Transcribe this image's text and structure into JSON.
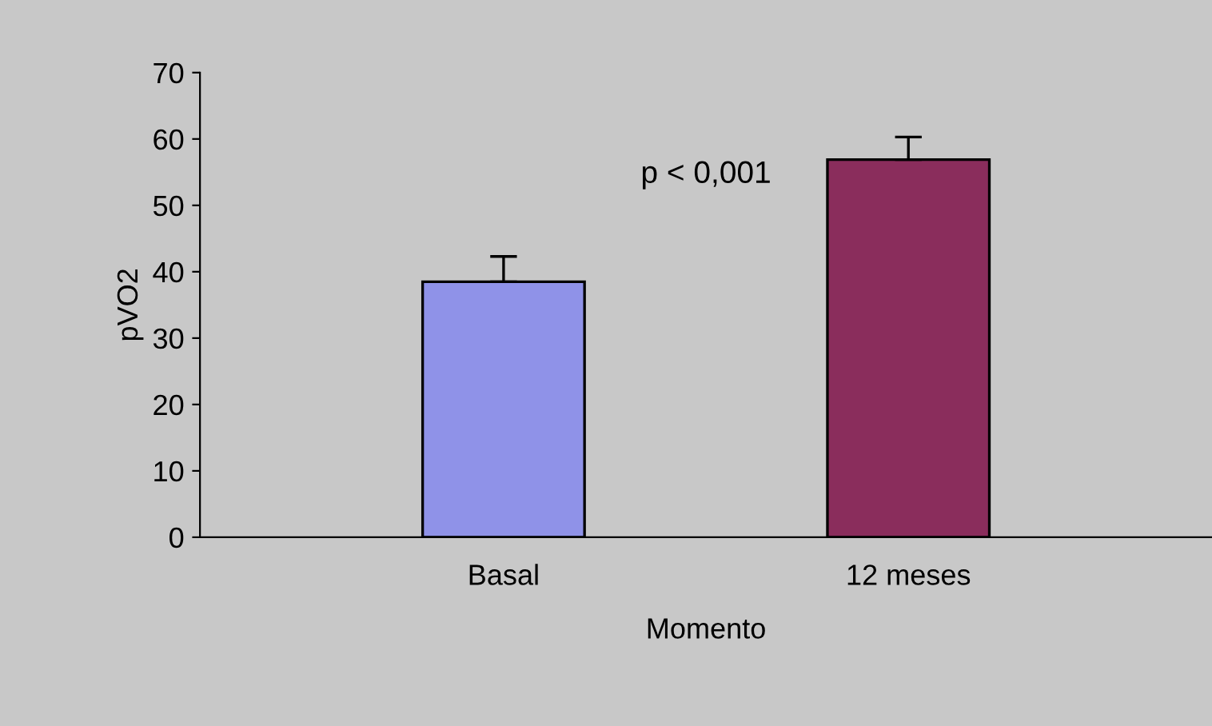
{
  "chart_data": {
    "type": "bar",
    "xlabel": "Momento",
    "ylabel": "pVO2",
    "categories": [
      "Basal",
      "12 meses"
    ],
    "values": [
      38.5,
      56.9
    ],
    "errors": [
      [
        38.5,
        42.3
      ],
      [
        56.9,
        60.3
      ]
    ],
    "colors": [
      "#8f92e8",
      "#8a2d5c"
    ],
    "ylim": [
      0,
      70
    ],
    "yticks": [
      0,
      10,
      20,
      30,
      40,
      50,
      60,
      70
    ],
    "grid": false,
    "annotations": [
      {
        "text": "p < 0,001"
      }
    ]
  }
}
